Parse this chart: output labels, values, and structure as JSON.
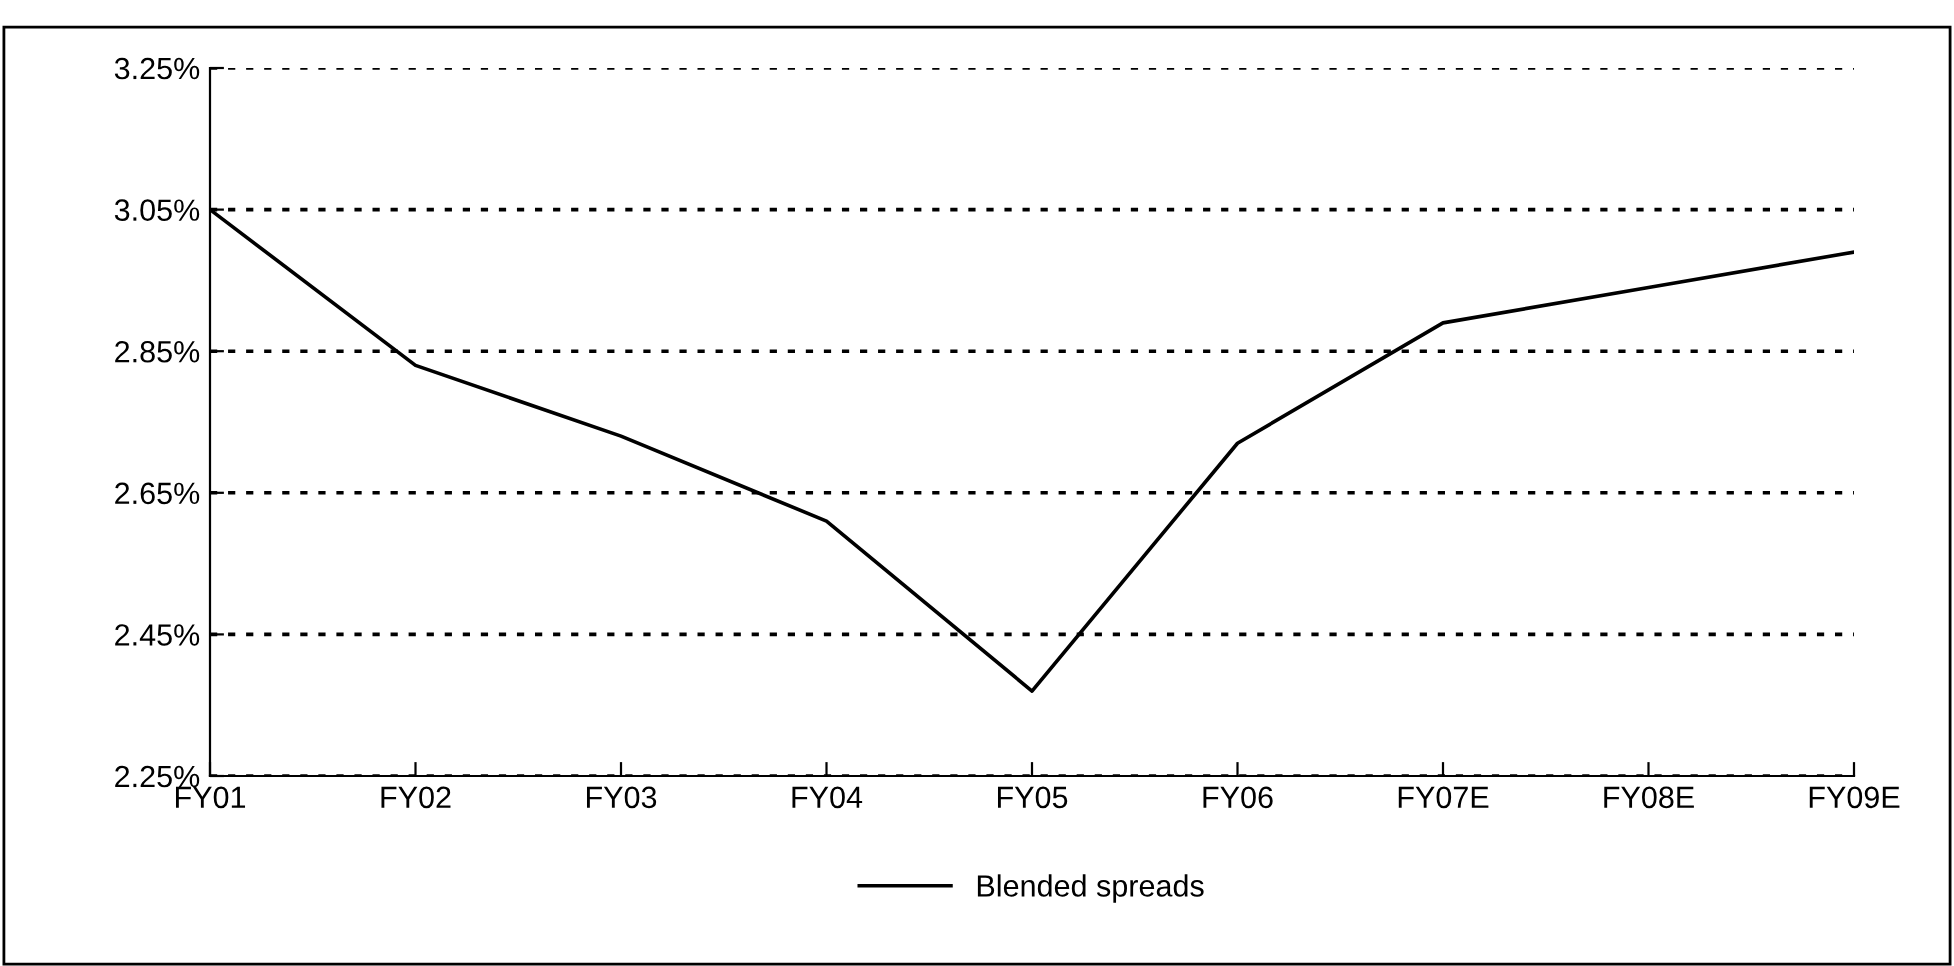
{
  "chart_data": {
    "type": "line",
    "categories": [
      "FY01",
      "FY02",
      "FY03",
      "FY04",
      "FY05",
      "FY06",
      "FY07E",
      "FY08E",
      "FY09E"
    ],
    "series": [
      {
        "name": "Blended spreads",
        "color": "#000000",
        "values": [
          3.05,
          2.83,
          2.73,
          2.61,
          2.37,
          2.72,
          2.89,
          2.94,
          2.99
        ]
      }
    ],
    "ylim": [
      2.25,
      3.25
    ],
    "yticks": [
      {
        "value": 2.25,
        "label": "2.25%"
      },
      {
        "value": 2.45,
        "label": "2.45%"
      },
      {
        "value": 2.65,
        "label": "2.65%"
      },
      {
        "value": 2.85,
        "label": "2.85%"
      },
      {
        "value": 3.05,
        "label": "3.05%"
      },
      {
        "value": 3.25,
        "label": "3.25%"
      }
    ],
    "grid": "y",
    "legend": "bottom",
    "marker": "none",
    "line_style": "solid"
  }
}
